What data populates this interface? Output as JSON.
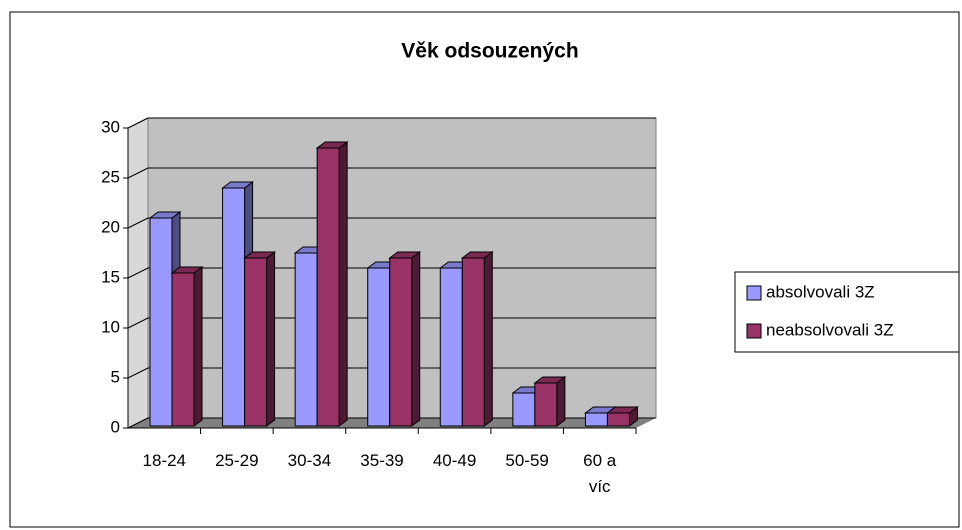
{
  "chart_data": {
    "type": "bar",
    "title": "Věk odsouzených",
    "categories": [
      "18-24",
      "25-29",
      "30-34",
      "35-39",
      "40-49",
      "50-59",
      "60 a víc"
    ],
    "series": [
      {
        "name": "absolvovali 3Z",
        "color": "#9999ff",
        "values": [
          21,
          24,
          17.5,
          16,
          16,
          3.5,
          1.5
        ]
      },
      {
        "name": "neabsolvovali 3Z",
        "color": "#993366",
        "values": [
          15.5,
          17,
          28,
          17,
          17,
          4.5,
          1.5
        ]
      }
    ],
    "ylim": [
      0,
      30
    ],
    "yticks": [
      0,
      5,
      10,
      15,
      20,
      25,
      30
    ],
    "grid": true,
    "legend": "right"
  }
}
